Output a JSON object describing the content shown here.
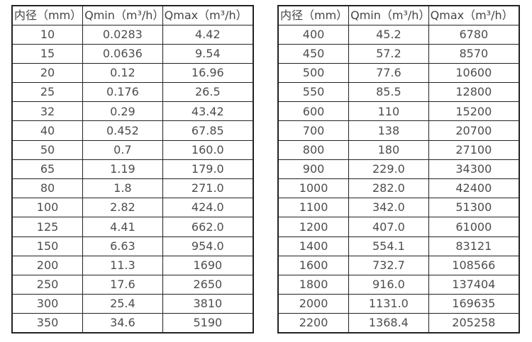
{
  "page": {
    "background_color": "#ffffff",
    "border_color": "#222222",
    "text_color": "#4d4d4d",
    "description_units": "m³/h"
  },
  "chart_data": {
    "type": "table",
    "title": "",
    "tables": [
      {
        "name": "flow-rate-table-small-diameters",
        "headers": [
          "内径（mm）",
          "Qmin（m³/h）",
          "Qmax（m³/h）"
        ],
        "rows": [
          [
            "10",
            "0.0283",
            "4.42"
          ],
          [
            "15",
            "0.0636",
            "9.54"
          ],
          [
            "20",
            "0.12",
            "16.96"
          ],
          [
            "25",
            "0.176",
            "26.5"
          ],
          [
            "32",
            "0.29",
            "43.42"
          ],
          [
            "40",
            "0.452",
            "67.85"
          ],
          [
            "50",
            "0.7",
            "160.0"
          ],
          [
            "65",
            "1.19",
            "179.0"
          ],
          [
            "80",
            "1.8",
            "271.0"
          ],
          [
            "100",
            "2.82",
            "424.0"
          ],
          [
            "125",
            "4.41",
            "662.0"
          ],
          [
            "150",
            "6.63",
            "954.0"
          ],
          [
            "200",
            "11.3",
            "1690"
          ],
          [
            "250",
            "17.6",
            "2650"
          ],
          [
            "300",
            "25.4",
            "3810"
          ],
          [
            "350",
            "34.6",
            "5190"
          ]
        ]
      },
      {
        "name": "flow-rate-table-large-diameters",
        "headers": [
          "内径（mm）",
          "Qmin（m³/h）",
          "Qmax（m³/h）"
        ],
        "rows": [
          [
            "400",
            "45.2",
            "6780"
          ],
          [
            "450",
            "57.2",
            "8570"
          ],
          [
            "500",
            "77.6",
            "10600"
          ],
          [
            "550",
            "85.5",
            "12800"
          ],
          [
            "600",
            "110",
            "15200"
          ],
          [
            "700",
            "138",
            "20700"
          ],
          [
            "800",
            "180",
            "27100"
          ],
          [
            "900",
            "229.0",
            "34300"
          ],
          [
            "1000",
            "282.0",
            "42400"
          ],
          [
            "1100",
            "342.0",
            "51300"
          ],
          [
            "1200",
            "407.0",
            "61000"
          ],
          [
            "1400",
            "554.1",
            "83121"
          ],
          [
            "1600",
            "732.7",
            "108566"
          ],
          [
            "1800",
            "916.0",
            "137404"
          ],
          [
            "2000",
            "1131.0",
            "169635"
          ],
          [
            "2200",
            "1368.4",
            "205258"
          ]
        ]
      }
    ]
  }
}
